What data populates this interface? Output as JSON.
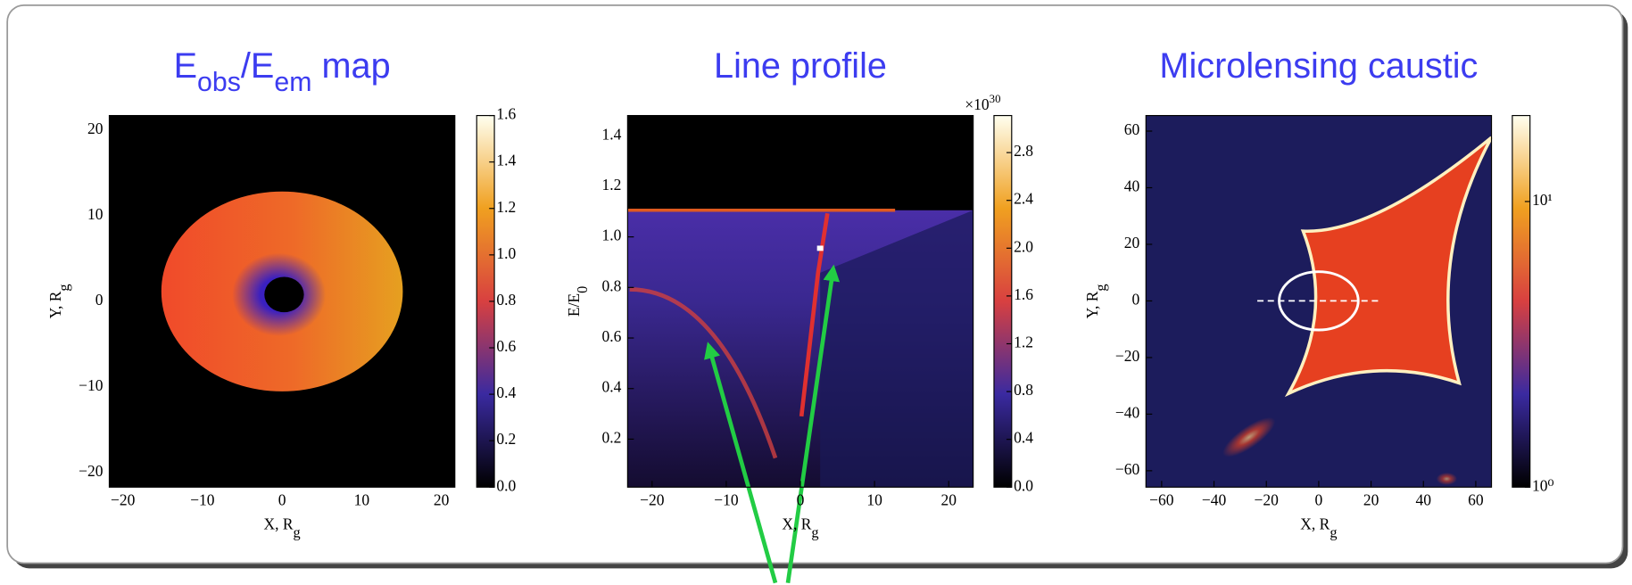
{
  "chart_data": [
    {
      "type": "heatmap",
      "title": [
        "E",
        "obs",
        "/E",
        "em",
        " map"
      ],
      "xlabel": [
        "X,  R",
        "g"
      ],
      "ylabel": [
        "Y,  R",
        "g"
      ],
      "xlim": [
        -21.7,
        21.7
      ],
      "ylim": [
        -21.7,
        21.7
      ],
      "xticks": [
        {
          "value": -20,
          "label": "−20"
        },
        {
          "value": -10,
          "label": "−10"
        },
        0,
        10,
        20
      ],
      "yticks": [
        {
          "value": -20,
          "label": "−20"
        },
        {
          "value": -10,
          "label": "−10"
        },
        0,
        10,
        20
      ],
      "colorbar": {
        "lim": [
          0,
          1.6
        ],
        "log": false,
        "ticks": [
          {
            "value": 0,
            "label": "0.0"
          },
          0.2,
          0.4,
          0.6,
          0.8,
          {
            "value": 1,
            "label": "1.0"
          },
          1.2,
          1.4,
          1.6
        ]
      }
    },
    {
      "type": "heatmap",
      "title": [
        "Line profile"
      ],
      "xlabel": [
        "X,  R",
        "g"
      ],
      "ylabel": [
        "E/E",
        "0"
      ],
      "xlim": [
        -23.3,
        23.3
      ],
      "ylim": [
        0.01,
        1.48
      ],
      "xticks": [
        {
          "value": -20,
          "label": "−20"
        },
        {
          "value": -10,
          "label": "−10"
        },
        0,
        10,
        20
      ],
      "yticks": [
        0.2,
        0.4,
        0.6,
        0.8,
        {
          "value": 1,
          "label": "1.0"
        },
        1.2,
        1.4
      ],
      "colorbar": {
        "lim": [
          0,
          3.11
        ],
        "log": false,
        "offset": [
          "×10",
          "30"
        ],
        "ticks": [
          {
            "value": 0,
            "label": "0.0"
          },
          0.4,
          0.8,
          1.2,
          1.6,
          {
            "value": 2,
            "label": "2.0"
          },
          2.4,
          2.8
        ]
      }
    },
    {
      "type": "heatmap",
      "title": [
        "Microlensing caustic"
      ],
      "xlabel": [
        "X,  R",
        "g"
      ],
      "ylabel": [
        "Y,  R",
        "g"
      ],
      "xlim": [
        -66,
        66
      ],
      "ylim": [
        -65.8,
        65.5
      ],
      "xticks": [
        {
          "value": -60,
          "label": "−60"
        },
        {
          "value": -40,
          "label": "−40"
        },
        {
          "value": -20,
          "label": "−20"
        },
        0,
        20,
        40,
        60
      ],
      "yticks": [
        {
          "value": -60,
          "label": "−60"
        },
        {
          "value": -40,
          "label": "−40"
        },
        {
          "value": -20,
          "label": "−20"
        },
        0,
        20,
        40,
        60
      ],
      "colorbar": {
        "lim": [
          1,
          20
        ],
        "log": true,
        "ticks": [
          {
            "value": 1,
            "label": "10⁰"
          },
          {
            "value": 10,
            "label": "10¹"
          }
        ]
      }
    }
  ]
}
